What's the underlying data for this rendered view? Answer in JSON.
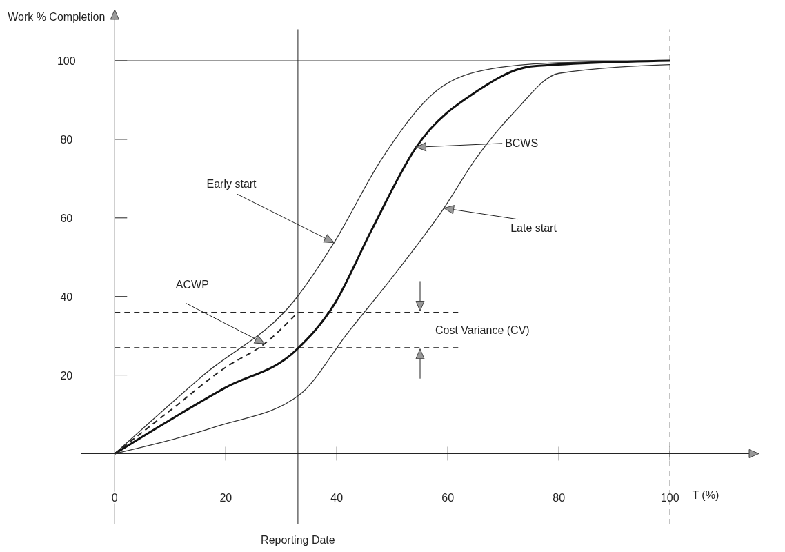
{
  "chart_data": {
    "type": "line",
    "xlabel": "T (%)",
    "ylabel": "Work % Completion",
    "xlim": [
      -6,
      116
    ],
    "ylim": [
      -18,
      113
    ],
    "xticks": [
      0,
      20,
      40,
      60,
      80,
      100
    ],
    "yticks": [
      20,
      40,
      60,
      80,
      100
    ],
    "grid": false,
    "marker": "none",
    "series": [
      {
        "color": "#333333",
        "line_style": "solid",
        "x": [
          0,
          16,
          32.7,
          39.5,
          48,
          58,
          68,
          80,
          100
        ],
        "values": [
          0,
          20,
          39.6,
          53.7,
          74.8,
          92.4,
          98,
          99.5,
          100
        ]
      },
      {
        "color": "#111111",
        "line_style": "solid",
        "x": [
          0,
          19.8,
          32.7,
          39.5,
          46.3,
          54.3,
          65.4,
          75.3,
          100
        ],
        "values": [
          0,
          16.7,
          26.4,
          37.9,
          57,
          78,
          92.4,
          98.6,
          100
        ]
      },
      {
        "color": "#333333",
        "line_style": "solid",
        "x": [
          0,
          18.5,
          33.3,
          42,
          50.6,
          59.3,
          65,
          72,
          80,
          100
        ],
        "values": [
          0,
          7,
          15,
          30.8,
          46,
          62.5,
          75,
          87,
          96.8,
          99
        ]
      },
      {
        "color": "#222222",
        "line_style": "dashed",
        "x": [
          0,
          10,
          20,
          27,
          33
        ],
        "values": [
          0,
          11,
          22,
          28,
          36
        ]
      }
    ],
    "ref_lines": [
      {
        "axis": "y",
        "value": 100,
        "color": "#333333",
        "line_style": "solid"
      },
      {
        "axis": "x",
        "value": 33,
        "label": "Reporting Date",
        "color": "#222222",
        "line_style": "solid"
      },
      {
        "axis": "x",
        "value": 100,
        "color": "#333333",
        "line_style": "dashed"
      },
      {
        "axis": "y",
        "value": 36,
        "color": "#222222",
        "line_style": "dashed"
      },
      {
        "axis": "y",
        "value": 27,
        "color": "#222222",
        "line_style": "dashed"
      }
    ],
    "annotations": [
      {
        "text": "Early start",
        "x": 39.5,
        "y": 53.7
      },
      {
        "text": "BCWS",
        "x": 54.3,
        "y": 78
      },
      {
        "text": "Late start",
        "x": 59.3,
        "y": 62.5
      },
      {
        "text": "ACWP",
        "x": 27,
        "y": 28
      },
      "Cost Variance (CV)"
    ]
  }
}
